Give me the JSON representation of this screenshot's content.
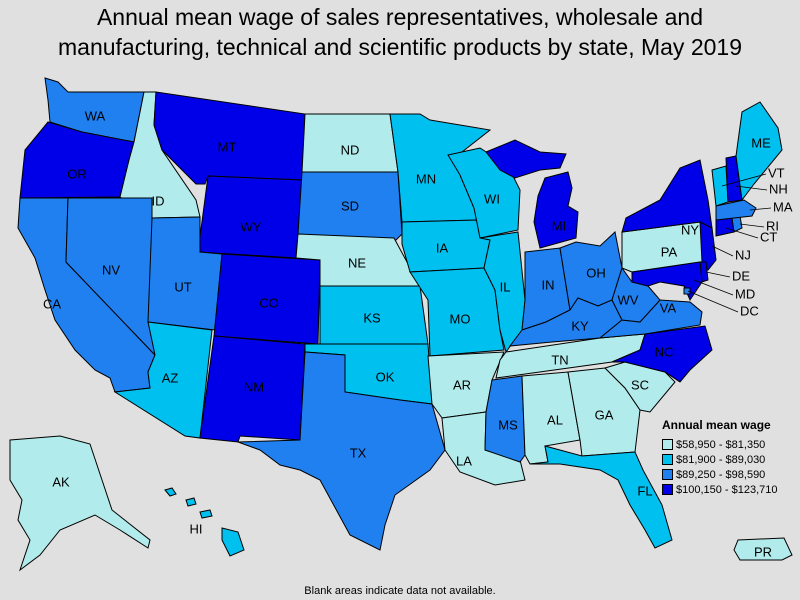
{
  "title_line1": "Annual mean wage of sales representatives, wholesale and",
  "title_line2": "manufacturing, technical and scientific products by state, May 2019",
  "footer": "Blank areas indicate data not available.",
  "legend": {
    "title": "Annual mean wage",
    "items": [
      {
        "label": "$58,950 - $81,350",
        "color": "#b2ebeb"
      },
      {
        "label": "$81,900 - $89,030",
        "color": "#00c0f0"
      },
      {
        "label": "$89,250 - $98,590",
        "color": "#2080f0"
      },
      {
        "label": "$100,150 - $123,710",
        "color": "#0000e8"
      }
    ]
  },
  "states": [
    {
      "abbr": "WA",
      "bin": 2
    },
    {
      "abbr": "OR",
      "bin": 3
    },
    {
      "abbr": "CA",
      "bin": 2
    },
    {
      "abbr": "ID",
      "bin": 0
    },
    {
      "abbr": "NV",
      "bin": 2
    },
    {
      "abbr": "MT",
      "bin": 3
    },
    {
      "abbr": "WY",
      "bin": 3
    },
    {
      "abbr": "UT",
      "bin": 2
    },
    {
      "abbr": "AZ",
      "bin": 1
    },
    {
      "abbr": "CO",
      "bin": 3
    },
    {
      "abbr": "NM",
      "bin": 3
    },
    {
      "abbr": "ND",
      "bin": 0
    },
    {
      "abbr": "SD",
      "bin": 2
    },
    {
      "abbr": "NE",
      "bin": 0
    },
    {
      "abbr": "KS",
      "bin": 1
    },
    {
      "abbr": "OK",
      "bin": 1
    },
    {
      "abbr": "TX",
      "bin": 2
    },
    {
      "abbr": "MN",
      "bin": 1
    },
    {
      "abbr": "IA",
      "bin": 1
    },
    {
      "abbr": "MO",
      "bin": 1
    },
    {
      "abbr": "AR",
      "bin": 0
    },
    {
      "abbr": "LA",
      "bin": 0
    },
    {
      "abbr": "WI",
      "bin": 1
    },
    {
      "abbr": "IL",
      "bin": 1
    },
    {
      "abbr": "MI",
      "bin": 3
    },
    {
      "abbr": "IN",
      "bin": 2
    },
    {
      "abbr": "OH",
      "bin": 2
    },
    {
      "abbr": "KY",
      "bin": 2
    },
    {
      "abbr": "TN",
      "bin": 0
    },
    {
      "abbr": "MS",
      "bin": 2
    },
    {
      "abbr": "AL",
      "bin": 0
    },
    {
      "abbr": "GA",
      "bin": 0
    },
    {
      "abbr": "FL",
      "bin": 1
    },
    {
      "abbr": "SC",
      "bin": 0
    },
    {
      "abbr": "NC",
      "bin": 3
    },
    {
      "abbr": "VA",
      "bin": 2
    },
    {
      "abbr": "WV",
      "bin": 2
    },
    {
      "abbr": "PA",
      "bin": 0
    },
    {
      "abbr": "NY",
      "bin": 3
    },
    {
      "abbr": "NJ",
      "bin": 3
    },
    {
      "abbr": "DE",
      "bin": 3
    },
    {
      "abbr": "MD",
      "bin": 3
    },
    {
      "abbr": "DC",
      "bin": 2
    },
    {
      "abbr": "CT",
      "bin": 3
    },
    {
      "abbr": "RI",
      "bin": 2
    },
    {
      "abbr": "MA",
      "bin": 2
    },
    {
      "abbr": "VT",
      "bin": 1
    },
    {
      "abbr": "NH",
      "bin": 3
    },
    {
      "abbr": "ME",
      "bin": 1
    },
    {
      "abbr": "AK",
      "bin": 0
    },
    {
      "abbr": "HI",
      "bin": 1
    },
    {
      "abbr": "PR",
      "bin": 0
    }
  ]
}
